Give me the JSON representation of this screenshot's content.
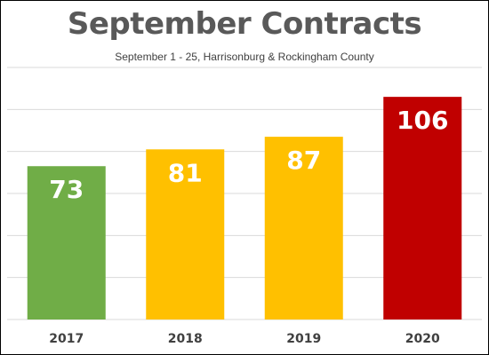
{
  "chart_data": {
    "type": "bar",
    "title": "September Contracts",
    "subtitle": "September 1 - 25, Harrisonburg & Rockingham County",
    "categories": [
      "2017",
      "2018",
      "2019",
      "2020"
    ],
    "values": [
      73,
      81,
      87,
      106
    ],
    "bar_colors": [
      "#70AD47",
      "#FFC000",
      "#FFC000",
      "#C00000"
    ],
    "ylim": [
      0,
      120
    ],
    "grid": true,
    "legend": "none"
  }
}
